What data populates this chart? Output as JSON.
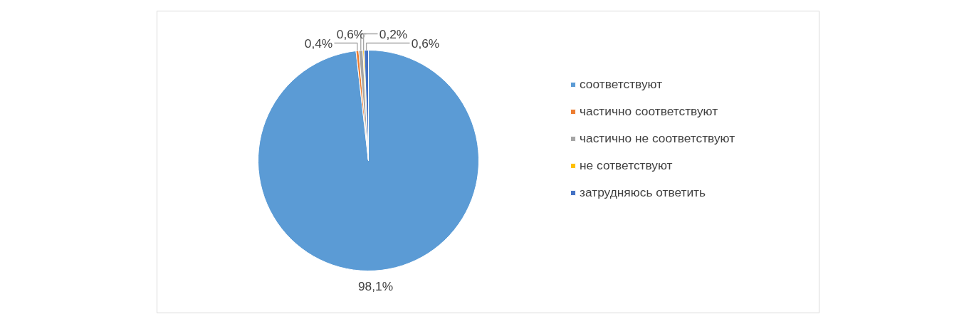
{
  "chart_data": {
    "type": "pie",
    "categories": [
      "соответствуют",
      "частично соответствуют",
      "частично не соответствуют",
      "не сответствуют",
      "затрудняюсь ответить"
    ],
    "values": [
      98.1,
      0.4,
      0.6,
      0.2,
      0.6
    ],
    "colors": [
      "#5b9bd5",
      "#ed7d31",
      "#a5a5a5",
      "#ffc000",
      "#4472c4"
    ],
    "value_labels": [
      "98,1%",
      "0,4%",
      "0,6%",
      "0,2%",
      "0,6%"
    ],
    "legend": "right"
  }
}
